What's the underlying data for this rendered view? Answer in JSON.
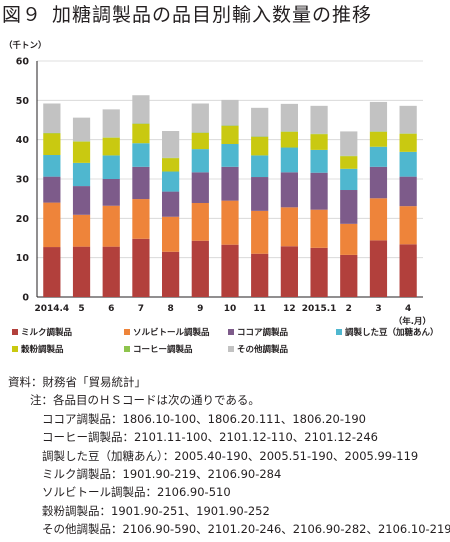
{
  "title": {
    "number": "図９",
    "text": "加糖調製品の品目別輸入数量の推移"
  },
  "chart_data": {
    "type": "bar",
    "stacked": true,
    "unit_label": "（千トン）",
    "xaxis_unit_label": "（年.月）",
    "ylim": [
      0,
      60
    ],
    "yticks": [
      "0",
      "10",
      "20",
      "30",
      "40",
      "50",
      "60"
    ],
    "categories": [
      "2014.4",
      "5",
      "6",
      "7",
      "8",
      "9",
      "10",
      "11",
      "12",
      "2015.1",
      "2",
      "3",
      "4"
    ],
    "grid": "horizontal",
    "legend_placement": "bottom",
    "series": [
      {
        "name": "ミルク調製品",
        "color": "#b2403c",
        "values": [
          12.7,
          12.8,
          12.8,
          14.8,
          11.5,
          14.3,
          13.3,
          11.0,
          12.9,
          12.5,
          10.7,
          14.4,
          13.4
        ]
      },
      {
        "name": "ソルビトール調製品",
        "color": "#ee843a",
        "values": [
          11.3,
          8.1,
          10.4,
          10.1,
          8.9,
          9.6,
          11.2,
          10.9,
          9.9,
          9.7,
          7.9,
          10.7,
          9.7
        ]
      },
      {
        "name": "ココア調製品",
        "color": "#7d5b8a",
        "values": [
          6.6,
          7.3,
          6.8,
          8.2,
          6.4,
          7.8,
          8.6,
          8.6,
          8.9,
          9.4,
          8.6,
          8.0,
          7.5
        ]
      },
      {
        "name": "調製した豆（加糖あん）",
        "color": "#4fb7cf",
        "values": [
          5.5,
          5.9,
          6.0,
          6.0,
          5.1,
          5.9,
          5.8,
          5.5,
          6.3,
          5.8,
          5.4,
          5.1,
          6.3
        ]
      },
      {
        "name": "穀粉調製品",
        "color": "#c9c911",
        "values": [
          5.5,
          5.4,
          4.5,
          4.9,
          3.4,
          4.1,
          4.6,
          4.7,
          4.0,
          4.0,
          3.2,
          3.8,
          4.6
        ]
      },
      {
        "name": "コーヒー調製品",
        "color": "#8ec44d",
        "values": [
          0.1,
          0.1,
          0.1,
          0.1,
          0.1,
          0.1,
          0.1,
          0.1,
          0.1,
          0.1,
          0.1,
          0.1,
          0.1
        ]
      },
      {
        "name": "その他調製品",
        "color": "#c2c2c2",
        "values": [
          7.5,
          6.0,
          7.1,
          7.2,
          6.8,
          7.4,
          6.5,
          7.3,
          7.0,
          7.1,
          6.2,
          7.5,
          7.0
        ]
      }
    ]
  },
  "legend_rows": [
    [
      0,
      1,
      2,
      3
    ],
    [
      4,
      5,
      6
    ]
  ],
  "notes": {
    "source": "資料：財務省「貿易統計」",
    "note_intro": "注：各品目のＨＳコードは次の通りである。",
    "items": [
      "ココア調製品：1806.10-100、1806.20.111、1806.20-190",
      "コーヒー調製品：2101.11-100、2101.12-110、2101.12-246",
      "調製した豆（加糖あん）：2005.40-190、2005.51-190、2005.99-119",
      "ミルク調製品：1901.90-219、2106.90-284",
      "ソルビトール調製品：2106.90-510",
      "穀粉調製品：1901.90-251、1901.90-252",
      "その他調製品：2106.90-590、2101.20-246、2106.90-282、2106.10-219"
    ]
  }
}
